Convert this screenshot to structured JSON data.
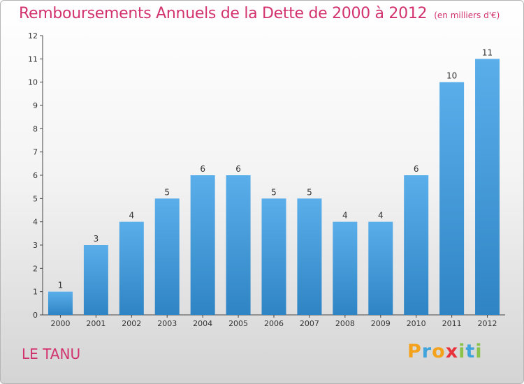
{
  "chart_data": {
    "type": "bar",
    "title": "Remboursements Annuels de la Dette de 2000 à 2012",
    "subtitle": "(en milliers d'€)",
    "categories": [
      "2000",
      "2001",
      "2002",
      "2003",
      "2004",
      "2005",
      "2006",
      "2007",
      "2008",
      "2009",
      "2010",
      "2011",
      "2012"
    ],
    "values": [
      1,
      3,
      4,
      5,
      6,
      6,
      5,
      5,
      4,
      4,
      6,
      10,
      11
    ],
    "ylim": [
      0,
      12
    ],
    "yticks": [
      0,
      1,
      2,
      3,
      4,
      5,
      6,
      7,
      8,
      9,
      10,
      11,
      12
    ],
    "grid": false,
    "bar_color": "#3d9ae0"
  },
  "location": "LE TANU",
  "brand": {
    "parts": [
      "P",
      "r",
      "o",
      "x",
      "i",
      "t",
      "i"
    ]
  }
}
